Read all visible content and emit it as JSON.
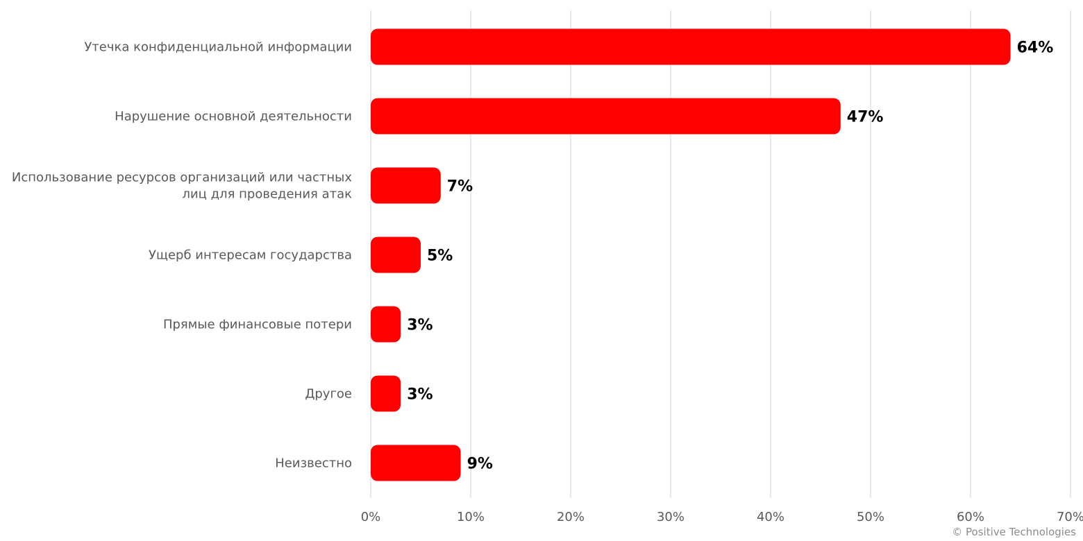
{
  "chart_data": {
    "type": "bar",
    "orientation": "horizontal",
    "categories": [
      [
        "Утечка конфиденциальной информации"
      ],
      [
        "Нарушение основной деятельности"
      ],
      [
        "Использование ресурсов организаций или частных",
        "лиц для проведения атак"
      ],
      [
        "Ущерб интересам государства"
      ],
      [
        "Прямые финансовые потери"
      ],
      [
        "Другое"
      ],
      [
        "Неизвестно"
      ]
    ],
    "values": [
      64,
      47,
      7,
      5,
      3,
      3,
      9
    ],
    "value_labels": [
      "64%",
      "47%",
      "7%",
      "5%",
      "3%",
      "3%",
      "9%"
    ],
    "xlim": [
      0,
      70
    ],
    "x_ticks": [
      0,
      10,
      20,
      30,
      40,
      50,
      60,
      70
    ],
    "x_tick_labels": [
      "0%",
      "10%",
      "20%",
      "30%",
      "40%",
      "50%",
      "60%",
      "70%"
    ],
    "grid": "vertical",
    "bar_color": "#ff0000"
  },
  "footer": {
    "copyright": "© Positive Technologies"
  }
}
